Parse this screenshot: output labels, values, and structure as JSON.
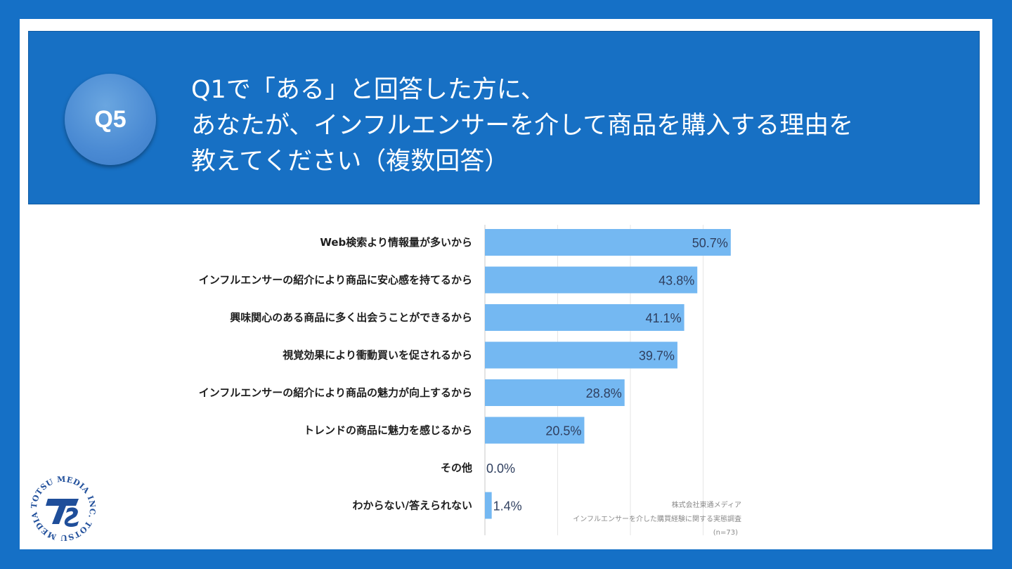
{
  "badge": {
    "label": "Q5"
  },
  "header": {
    "lines": [
      "Q1で「ある」と回答した方に、",
      "あなたが、インフルエンサーを介して商品を購入する理由を",
      "教えてください（複数回答）"
    ]
  },
  "chart_data": {
    "type": "bar",
    "orientation": "horizontal",
    "categories": [
      "Web検索より情報量が多いから",
      "インフルエンサーの紹介により商品に安心感を持てるから",
      "興味関心のある商品に多く出会うことができるから",
      "視覚効果により衝動買いを促されるから",
      "インフルエンサーの紹介により商品の魅力が向上するから",
      "トレンドの商品に魅力を感じるから",
      "その他",
      "わからない/答えられない"
    ],
    "values": [
      50.7,
      43.8,
      41.1,
      39.7,
      28.8,
      20.5,
      0.0,
      1.4
    ],
    "value_labels": [
      "50.7%",
      "43.8%",
      "41.1%",
      "39.7%",
      "28.8%",
      "20.5%",
      "0.0%",
      "1.4%"
    ],
    "xlim": [
      0,
      55
    ],
    "grid": true,
    "bar_color": "#74b8f2"
  },
  "source": {
    "line1": "株式会社東通メディア",
    "line2": "インフルエンサーを介した購買経験に関する実態調査",
    "line3": "(n=73)"
  },
  "logo": {
    "ring_text": "TOTSU MEDIA INC. TOTSU MEDIA INC. ",
    "mark": "TS"
  },
  "colors": {
    "background": "#1570c6",
    "header": "#1770c4",
    "badge": "#4a8ad3",
    "bar": "#74b8f2",
    "logo": "#1f4e9a"
  }
}
